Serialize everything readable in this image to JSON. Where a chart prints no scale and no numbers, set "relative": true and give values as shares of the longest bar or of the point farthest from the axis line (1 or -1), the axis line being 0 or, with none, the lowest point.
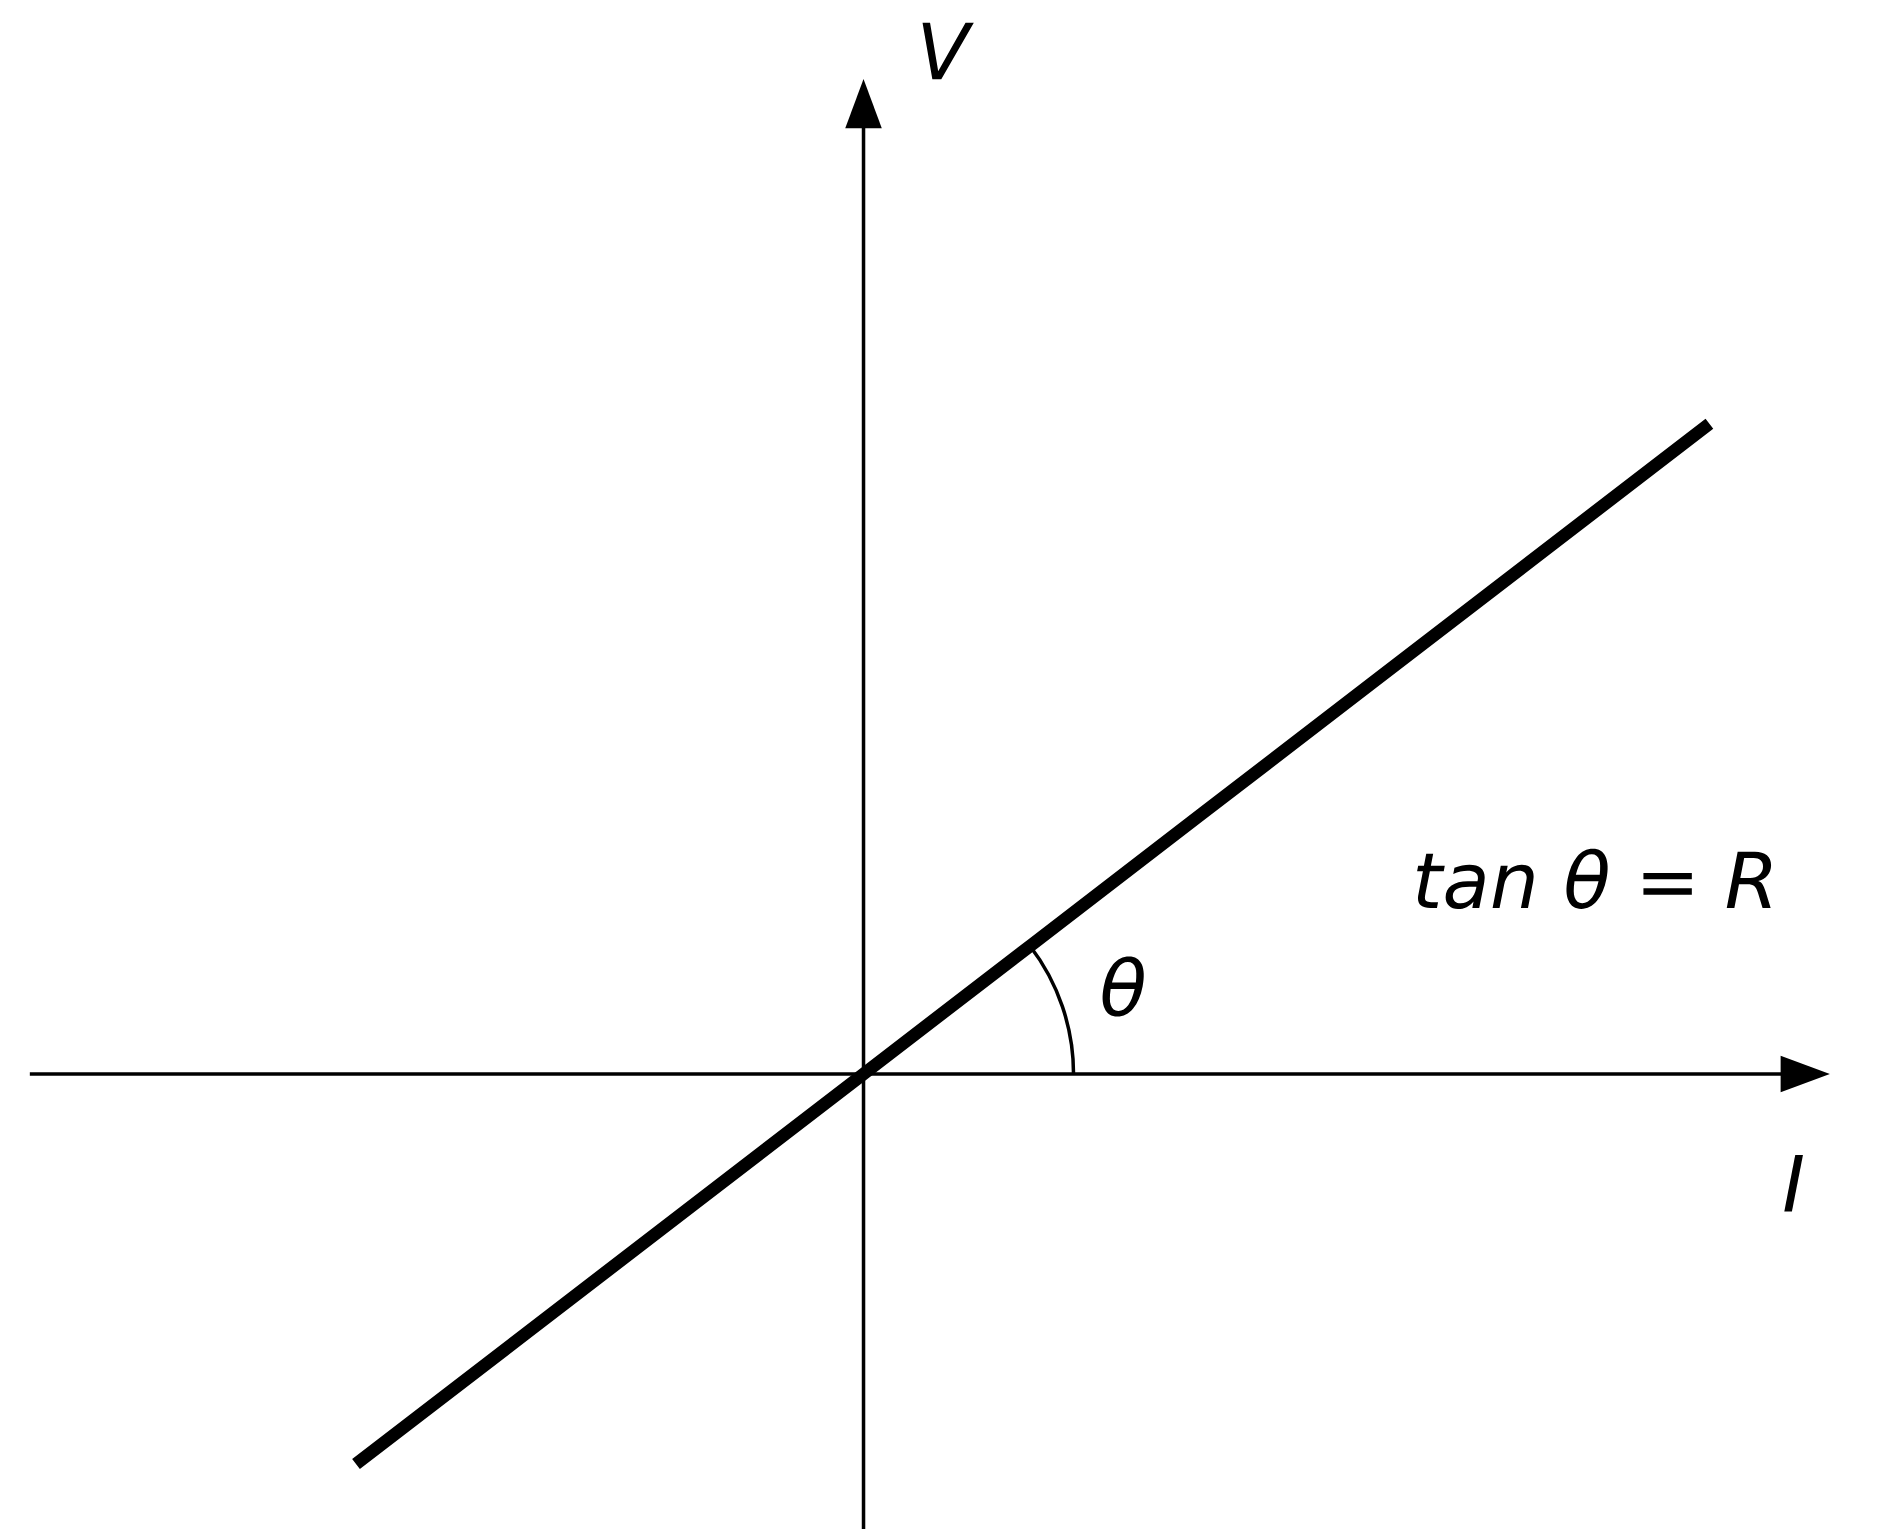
{
  "chart_data": {
    "type": "line",
    "relative": true,
    "categories": [
      null,
      null,
      null,
      null,
      null,
      null,
      null,
      null,
      null
    ],
    "values": [
      -0.6,
      -0.4,
      -0.2,
      0,
      0.2,
      0.4,
      0.6,
      0.8,
      1.0
    ],
    "xlabel": "I",
    "ylabel": "V",
    "color": "#000000",
    "marker": "none",
    "annotations": [
      "θ",
      "tan θ = R"
    ]
  }
}
